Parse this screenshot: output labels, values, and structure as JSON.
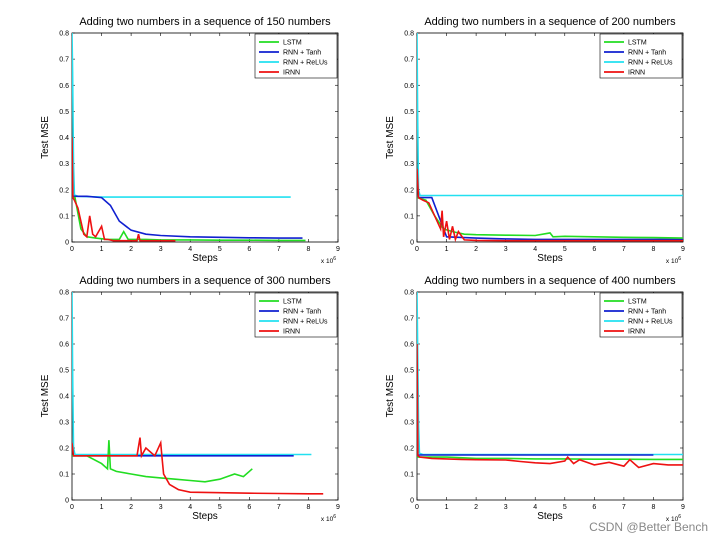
{
  "watermark": "CSDN @Better Bench",
  "colors": {
    "LSTM": "#22dd22",
    "RNN + Tanh": "#1020d0",
    "RNN + ReLUs": "#22e0f0",
    "IRNN": "#ee1111"
  },
  "chart_data": [
    {
      "type": "line",
      "title": "Adding two numbers in a sequence of 150 numbers",
      "xlabel": "Steps",
      "ylabel": "Test MSE",
      "x_multiplier": "x 10^6",
      "xlim": [
        0,
        9
      ],
      "ylim": [
        0,
        0.8
      ],
      "xticks": [
        "0",
        "1",
        "2",
        "3",
        "4",
        "5",
        "6",
        "7",
        "8",
        "9"
      ],
      "yticks": [
        "0",
        "0.1",
        "0.2",
        "0.3",
        "0.4",
        "0.5",
        "0.6",
        "0.7",
        "0.8"
      ],
      "legend_position": "top-right",
      "series": [
        {
          "name": "LSTM",
          "x": [
            0,
            0.1,
            0.3,
            0.5,
            0.8,
            1.2,
            1.6,
            1.75,
            1.9,
            2.5,
            3,
            4,
            5,
            6,
            7,
            7.9
          ],
          "y": [
            0.17,
            0.17,
            0.05,
            0.02,
            0.015,
            0.01,
            0.01,
            0.04,
            0.01,
            0.01,
            0.008,
            0.008,
            0.007,
            0.007,
            0.006,
            0.006
          ]
        },
        {
          "name": "RNN + Tanh",
          "x": [
            0,
            0.5,
            1,
            1.3,
            1.6,
            2,
            2.5,
            3,
            4,
            5,
            6,
            7,
            7.8
          ],
          "y": [
            0.175,
            0.175,
            0.17,
            0.14,
            0.08,
            0.045,
            0.03,
            0.025,
            0.02,
            0.018,
            0.016,
            0.015,
            0.015
          ]
        },
        {
          "name": "RNN + ReLUs",
          "x": [
            0,
            0.02,
            0.05,
            0.08,
            0.2,
            1,
            2,
            3,
            4,
            5,
            6,
            7.4
          ],
          "y": [
            0.8,
            0.65,
            0.3,
            0.18,
            0.175,
            0.172,
            0.172,
            0.172,
            0.172,
            0.172,
            0.172,
            0.172
          ]
        },
        {
          "name": "IRNN",
          "x": [
            0,
            0.03,
            0.08,
            0.2,
            0.4,
            0.5,
            0.6,
            0.7,
            0.8,
            1,
            1.1,
            1.2,
            1.4,
            2,
            2.2,
            2.25,
            2.3,
            3,
            3.5
          ],
          "y": [
            0.4,
            0.17,
            0.16,
            0.13,
            0.03,
            0.02,
            0.1,
            0.03,
            0.02,
            0.06,
            0.01,
            0.01,
            0.005,
            0.005,
            0.005,
            0.03,
            0.005,
            0.005,
            0.005
          ]
        }
      ]
    },
    {
      "type": "line",
      "title": "Adding two numbers in a sequence of 200 numbers",
      "xlabel": "Steps",
      "ylabel": "Test MSE",
      "x_multiplier": "x 10^6",
      "xlim": [
        0,
        9
      ],
      "ylim": [
        0,
        0.8
      ],
      "xticks": [
        "0",
        "1",
        "2",
        "3",
        "4",
        "5",
        "6",
        "7",
        "8",
        "9"
      ],
      "yticks": [
        "0",
        "0.1",
        "0.2",
        "0.3",
        "0.4",
        "0.5",
        "0.6",
        "0.7",
        "0.8"
      ],
      "legend_position": "top-right",
      "series": [
        {
          "name": "LSTM",
          "x": [
            0,
            0.3,
            0.6,
            0.9,
            1.2,
            1.6,
            2,
            3,
            4,
            4.5,
            4.6,
            5,
            6,
            7,
            8,
            9
          ],
          "y": [
            0.17,
            0.16,
            0.1,
            0.05,
            0.04,
            0.03,
            0.028,
            0.026,
            0.025,
            0.035,
            0.02,
            0.022,
            0.02,
            0.018,
            0.017,
            0.015
          ]
        },
        {
          "name": "RNN + Tanh",
          "x": [
            0,
            0.5,
            1,
            2,
            3,
            4,
            5,
            6,
            7,
            8,
            9
          ],
          "y": [
            0.17,
            0.17,
            0.02,
            0.015,
            0.012,
            0.01,
            0.01,
            0.01,
            0.01,
            0.01,
            0.01
          ]
        },
        {
          "name": "RNN + ReLUs",
          "x": [
            0,
            0.02,
            0.05,
            0.1,
            1,
            2,
            3,
            4,
            5,
            6,
            7,
            8,
            9
          ],
          "y": [
            0.8,
            0.5,
            0.2,
            0.178,
            0.178,
            0.178,
            0.178,
            0.178,
            0.178,
            0.178,
            0.178,
            0.178,
            0.178
          ]
        },
        {
          "name": "IRNN",
          "x": [
            0,
            0.05,
            0.2,
            0.4,
            0.6,
            0.8,
            0.85,
            0.9,
            1,
            1.1,
            1.2,
            1.3,
            1.4,
            1.6,
            2,
            3,
            4,
            5,
            6,
            7,
            8,
            9
          ],
          "y": [
            0.28,
            0.17,
            0.16,
            0.15,
            0.1,
            0.05,
            0.12,
            0.02,
            0.08,
            0.01,
            0.06,
            0.01,
            0.04,
            0.008,
            0.006,
            0.005,
            0.005,
            0.005,
            0.005,
            0.005,
            0.005,
            0.005
          ]
        }
      ]
    },
    {
      "type": "line",
      "title": "Adding two numbers in a sequence of 300 numbers",
      "xlabel": "Steps",
      "ylabel": "Test MSE",
      "x_multiplier": "x 10^6",
      "xlim": [
        0,
        9
      ],
      "ylim": [
        0,
        0.8
      ],
      "xticks": [
        "0",
        "1",
        "2",
        "3",
        "4",
        "5",
        "6",
        "7",
        "8",
        "9"
      ],
      "yticks": [
        "0",
        "0.1",
        "0.2",
        "0.3",
        "0.4",
        "0.5",
        "0.6",
        "0.7",
        "0.8"
      ],
      "legend_position": "top-right",
      "series": [
        {
          "name": "LSTM",
          "x": [
            0,
            0.5,
            1,
            1.2,
            1.25,
            1.3,
            1.5,
            2,
            2.5,
            3,
            3.5,
            4,
            4.5,
            5,
            5.5,
            5.8,
            6.1
          ],
          "y": [
            0.17,
            0.17,
            0.14,
            0.12,
            0.23,
            0.12,
            0.11,
            0.1,
            0.09,
            0.085,
            0.08,
            0.075,
            0.07,
            0.08,
            0.1,
            0.09,
            0.12
          ]
        },
        {
          "name": "RNN + Tanh",
          "x": [
            0,
            1,
            2,
            3,
            4,
            5,
            6,
            7,
            7.5
          ],
          "y": [
            0.17,
            0.17,
            0.17,
            0.17,
            0.17,
            0.17,
            0.17,
            0.17,
            0.17
          ]
        },
        {
          "name": "RNN + ReLUs",
          "x": [
            0,
            0.02,
            0.05,
            0.1,
            1,
            2,
            3,
            4,
            5,
            6,
            7,
            8.1
          ],
          "y": [
            0.8,
            0.5,
            0.2,
            0.175,
            0.175,
            0.175,
            0.175,
            0.175,
            0.175,
            0.175,
            0.175,
            0.175
          ]
        },
        {
          "name": "IRNN",
          "x": [
            0,
            0.05,
            0.5,
            1,
            1.5,
            2,
            2.2,
            2.3,
            2.35,
            2.5,
            2.8,
            3,
            3.05,
            3.1,
            3.3,
            3.6,
            4,
            5,
            6,
            7,
            8,
            8.5
          ],
          "y": [
            0.22,
            0.17,
            0.17,
            0.17,
            0.17,
            0.17,
            0.17,
            0.24,
            0.17,
            0.2,
            0.17,
            0.22,
            0.16,
            0.1,
            0.06,
            0.04,
            0.03,
            0.028,
            0.026,
            0.025,
            0.024,
            0.024
          ]
        }
      ]
    },
    {
      "type": "line",
      "title": "Adding two numbers in a sequence of 400 numbers",
      "xlabel": "Steps",
      "ylabel": "Test MSE",
      "x_multiplier": "x 10^6",
      "xlim": [
        0,
        9
      ],
      "ylim": [
        0,
        0.8
      ],
      "xticks": [
        "0",
        "1",
        "2",
        "3",
        "4",
        "5",
        "6",
        "7",
        "8",
        "9"
      ],
      "yticks": [
        "0",
        "0.1",
        "0.2",
        "0.3",
        "0.4",
        "0.5",
        "0.6",
        "0.7",
        "0.8"
      ],
      "legend_position": "top-right",
      "series": [
        {
          "name": "LSTM",
          "x": [
            0,
            1,
            2,
            3,
            4,
            5,
            6,
            7,
            8,
            9
          ],
          "y": [
            0.165,
            0.165,
            0.16,
            0.16,
            0.158,
            0.158,
            0.157,
            0.157,
            0.156,
            0.156
          ]
        },
        {
          "name": "RNN + Tanh",
          "x": [
            0,
            2,
            4,
            6,
            8
          ],
          "y": [
            0.173,
            0.173,
            0.173,
            0.173,
            0.173
          ]
        },
        {
          "name": "RNN + ReLUs",
          "x": [
            0,
            0.02,
            0.05,
            0.08,
            0.2,
            1,
            2,
            3,
            4,
            5,
            6,
            7,
            8,
            9
          ],
          "y": [
            0.8,
            0.6,
            0.3,
            0.18,
            0.175,
            0.175,
            0.175,
            0.175,
            0.175,
            0.175,
            0.175,
            0.175,
            0.175,
            0.175
          ]
        },
        {
          "name": "IRNN",
          "x": [
            0,
            0.03,
            0.1,
            0.5,
            1,
            1.5,
            2,
            3,
            3.5,
            4,
            4.5,
            5,
            5.1,
            5.3,
            5.5,
            6,
            6.5,
            7,
            7.2,
            7.5,
            8,
            8.5,
            9
          ],
          "y": [
            0.6,
            0.17,
            0.165,
            0.16,
            0.158,
            0.156,
            0.155,
            0.154,
            0.148,
            0.143,
            0.14,
            0.15,
            0.165,
            0.14,
            0.155,
            0.135,
            0.145,
            0.13,
            0.155,
            0.125,
            0.14,
            0.135,
            0.135
          ]
        }
      ]
    }
  ]
}
